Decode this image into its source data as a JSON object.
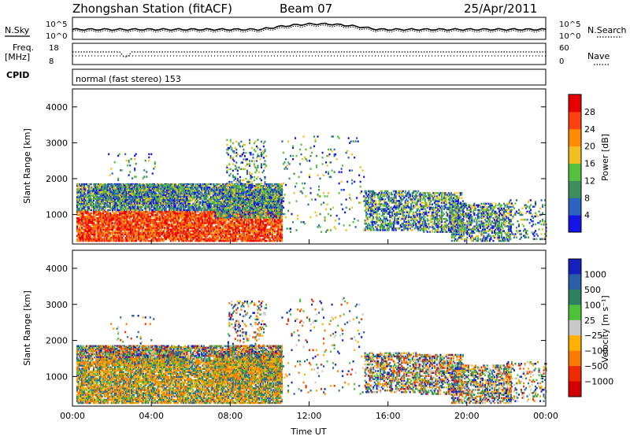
{
  "header": {
    "station": "Zhongshan Station (fitACF)",
    "beam": "Beam 07",
    "date": "25/Apr/2011"
  },
  "strip": {
    "nsky_label": "N.Sky",
    "nsearch_label": "N.Search",
    "freq_label": "Freq.",
    "freq_unit": "[MHz]",
    "nave_label": "Nave",
    "cpid_label": "CPID",
    "cpid_value": "normal (fast stereo) 153",
    "noise_ticks_left": [
      "10^5",
      "10^0"
    ],
    "noise_ticks_right": [
      "10^5",
      "10^0"
    ],
    "freq_ticks_left": [
      "18",
      "8"
    ],
    "nave_ticks_right": [
      "60",
      "0"
    ]
  },
  "colors": {
    "power": [
      "#1414e6",
      "#2a64c0",
      "#3d8f5e",
      "#55c040",
      "#f0c020",
      "#ff8a00",
      "#ff4010",
      "#e60000"
    ],
    "velocity": [
      "#1420c0",
      "#2a5fa8",
      "#2f8060",
      "#4fc03a",
      "#c8c8c8",
      "#ffb000",
      "#ff7a00",
      "#f02a00",
      "#d40000"
    ]
  },
  "chart_data": [
    {
      "type": "heatmap",
      "title": "Power",
      "xlabel": "Time UT",
      "ylabel": "Slant Range [km]",
      "x_ticks": [
        "00:00",
        "04:00",
        "08:00",
        "12:00",
        "16:00",
        "20:00",
        "00:00"
      ],
      "xlim_hours": [
        0,
        24
      ],
      "y_ticks": [
        1000,
        2000,
        3000,
        4000
      ],
      "ylim_km": [
        180,
        4500
      ],
      "colorbar": {
        "label": "Power [dB]",
        "ticks": [
          4,
          8,
          12,
          16,
          20,
          24,
          28
        ],
        "range": [
          0,
          32
        ]
      }
    },
    {
      "type": "heatmap",
      "title": "Velocity",
      "xlabel": "Time UT",
      "ylabel": "Slant Range [km]",
      "x_ticks": [
        "00:00",
        "04:00",
        "08:00",
        "12:00",
        "16:00",
        "20:00",
        "00:00"
      ],
      "xlim_hours": [
        0,
        24
      ],
      "y_ticks": [
        1000,
        2000,
        3000,
        4000
      ],
      "ylim_km": [
        180,
        4500
      ],
      "colorbar": {
        "label": "Velocity [m s⁻¹]",
        "ticks": [
          "1000",
          "500",
          "100",
          "25",
          "−25",
          "−100",
          "−500",
          "−1000"
        ]
      }
    }
  ]
}
